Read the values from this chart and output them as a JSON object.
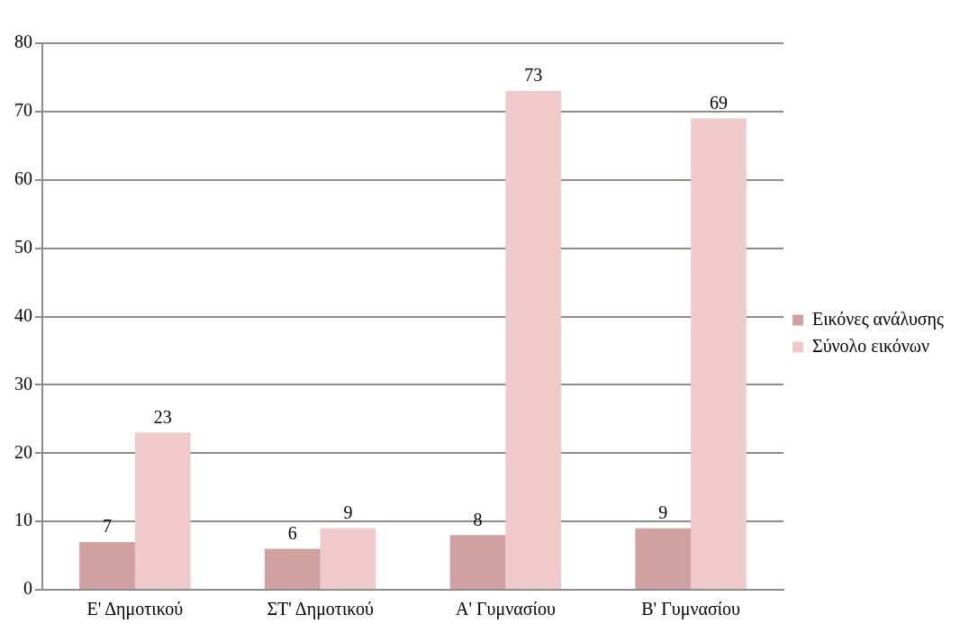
{
  "chart_data": {
    "type": "bar",
    "categories": [
      "Ε' Δημοτικού",
      "ΣΤ' Δημοτικού",
      "Α' Γυμνασίου",
      "Β' Γυμνασίου"
    ],
    "series": [
      {
        "name": "Εικόνες ανάλυσης",
        "color": "#cfa1a1",
        "values": [
          7,
          6,
          8,
          9
        ]
      },
      {
        "name": "Σύνολο εικόνων",
        "color": "#f0caca",
        "values": [
          23,
          9,
          73,
          69
        ]
      }
    ],
    "ylim": [
      0,
      80
    ],
    "yticks": [
      0,
      10,
      20,
      30,
      40,
      50,
      60,
      70,
      80
    ],
    "grid": "y",
    "legend": "right",
    "data_labels": true
  }
}
